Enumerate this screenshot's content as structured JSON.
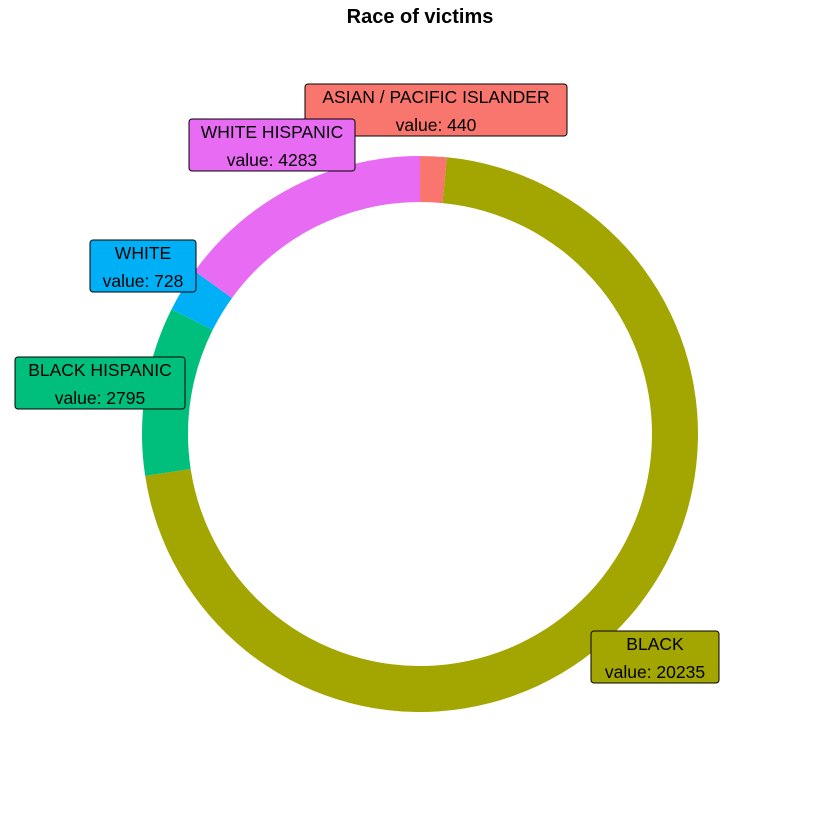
{
  "chart_data": {
    "type": "pie",
    "variant": "donut",
    "title": "Race of victims",
    "value_prefix": "value: ",
    "legend": "none",
    "slices": [
      {
        "label": "ASIAN / PACIFIC ISLANDER",
        "value": 440,
        "color": "#F8766D"
      },
      {
        "label": "BLACK",
        "value": 20235,
        "color": "#A3A500"
      },
      {
        "label": "BLACK HISPANIC",
        "value": 2795,
        "color": "#00BF7D"
      },
      {
        "label": "WHITE",
        "value": 728,
        "color": "#00B0F6"
      },
      {
        "label": "WHITE HISPANIC",
        "value": 4283,
        "color": "#E76BF3"
      }
    ]
  }
}
